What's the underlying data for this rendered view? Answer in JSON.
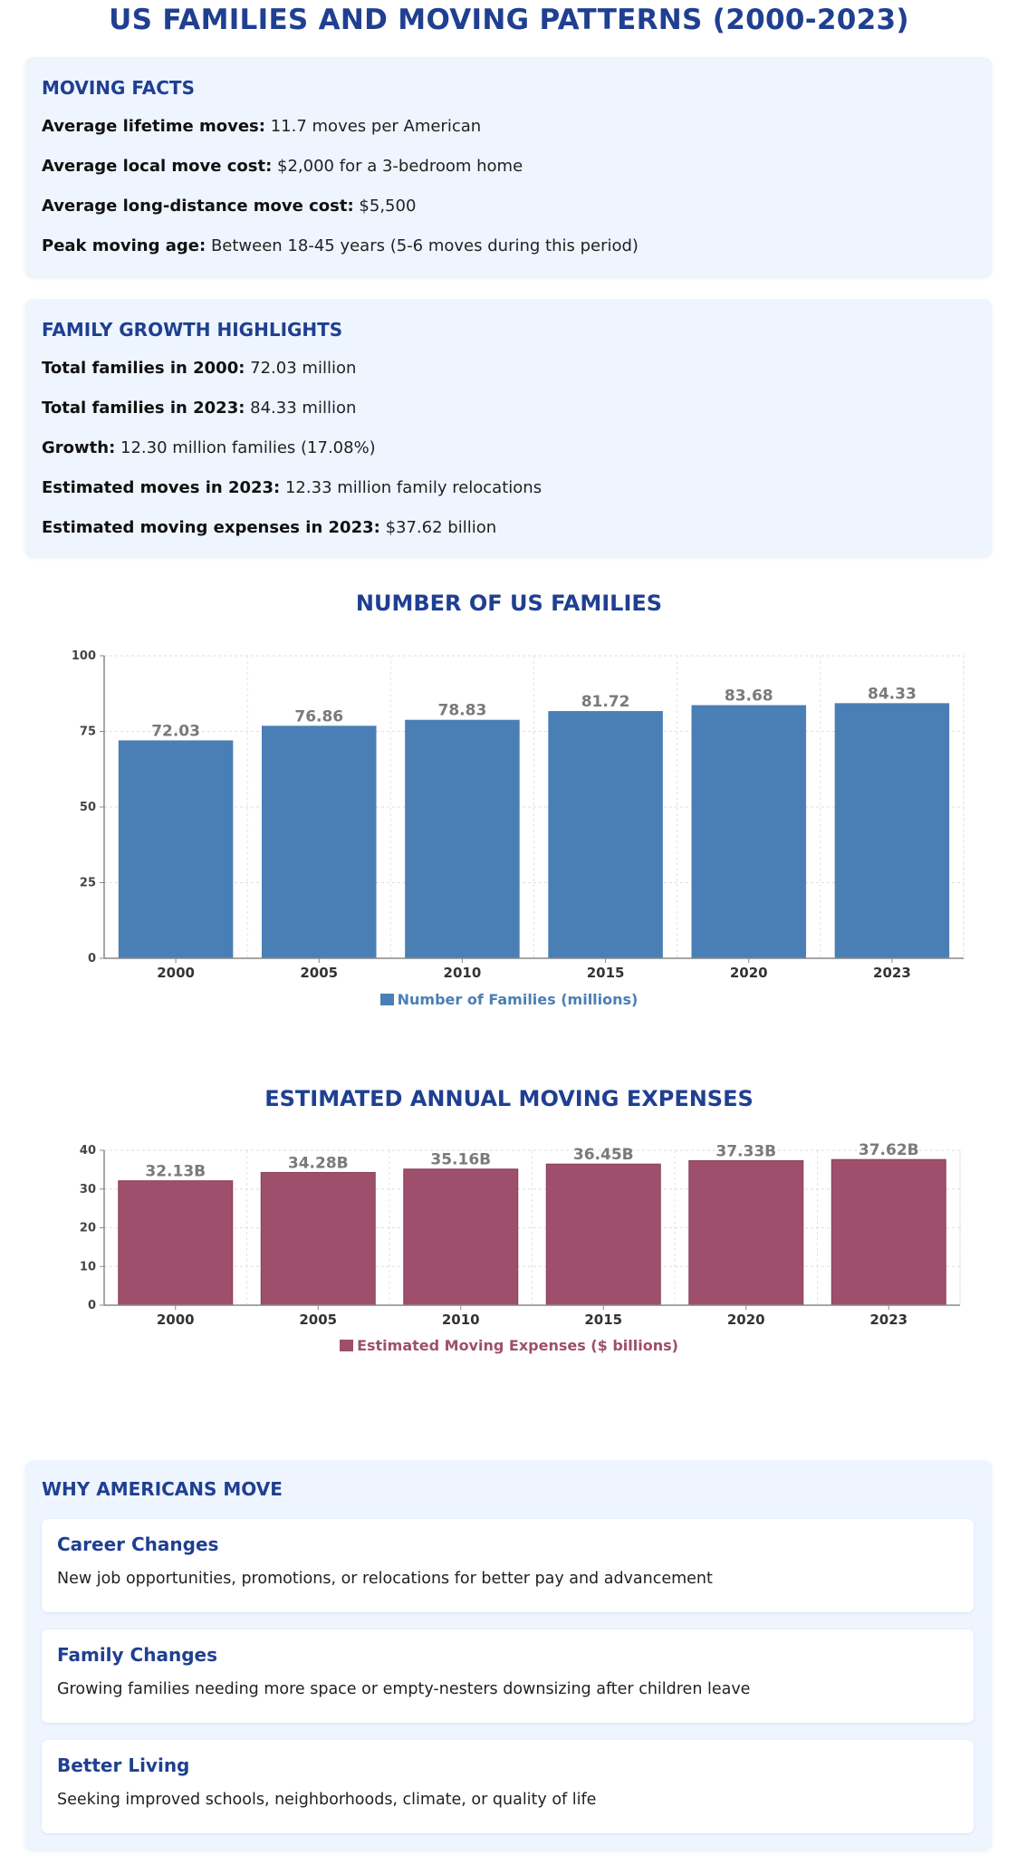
{
  "page": {
    "title": "US FAMILIES AND MOVING PATTERNS (2000-2023)"
  },
  "moving_facts": {
    "title": "MOVING FACTS",
    "items": [
      {
        "label": "Average lifetime moves:",
        "value": "11.7 moves per American"
      },
      {
        "label": "Average local move cost:",
        "value": "$2,000 for a 3-bedroom home"
      },
      {
        "label": "Average long-distance move cost:",
        "value": "$5,500"
      },
      {
        "label": "Peak moving age:",
        "value": "Between 18-45 years (5-6 moves during this period)"
      }
    ]
  },
  "growth_highlights": {
    "title": "FAMILY GROWTH HIGHLIGHTS",
    "items": [
      {
        "label": "Total families in 2000:",
        "value": "72.03 million"
      },
      {
        "label": "Total families in 2023:",
        "value": "84.33 million"
      },
      {
        "label": "Growth:",
        "value": "12.30 million families (17.08%)"
      },
      {
        "label": "Estimated moves in 2023:",
        "value": "12.33 million family relocations"
      },
      {
        "label": "Estimated moving expenses in 2023:",
        "value": "$37.62 billion"
      }
    ]
  },
  "chart_data": [
    {
      "type": "bar",
      "title": "NUMBER OF US FAMILIES",
      "categories": [
        "2000",
        "2005",
        "2010",
        "2015",
        "2020",
        "2023"
      ],
      "values": [
        72.03,
        76.86,
        78.83,
        81.72,
        83.68,
        84.33
      ],
      "data_labels": [
        "72.03",
        "76.86",
        "78.83",
        "81.72",
        "83.68",
        "84.33"
      ],
      "yticks": [
        "0",
        "25",
        "50",
        "75",
        "100"
      ],
      "ylim": [
        0,
        100
      ],
      "legend": "Number of Families (millions)",
      "legend_position": "bottom",
      "grid": true,
      "color": "#4a7fb5"
    },
    {
      "type": "bar",
      "title": "ESTIMATED ANNUAL MOVING EXPENSES",
      "categories": [
        "2000",
        "2005",
        "2010",
        "2015",
        "2020",
        "2023"
      ],
      "values": [
        32.13,
        34.28,
        35.16,
        36.45,
        37.33,
        37.62
      ],
      "data_labels": [
        "32.13B",
        "34.28B",
        "35.16B",
        "36.45B",
        "37.33B",
        "37.62B"
      ],
      "yticks": [
        "0",
        "10",
        "20",
        "30",
        "40"
      ],
      "ylim": [
        0,
        40
      ],
      "legend": "Estimated Moving Expenses ($ billions)",
      "legend_position": "bottom",
      "grid": true,
      "color": "#9e4f6c"
    }
  ],
  "why_move": {
    "title": "WHY AMERICANS MOVE",
    "reasons": [
      {
        "title": "Career Changes",
        "desc": "New job opportunities, promotions, or relocations for better pay and advancement"
      },
      {
        "title": "Family Changes",
        "desc": "Growing families needing more space or empty-nesters downsizing after children leave"
      },
      {
        "title": "Better Living",
        "desc": "Seeking improved schools, neighborhoods, climate, or quality of life"
      }
    ]
  }
}
